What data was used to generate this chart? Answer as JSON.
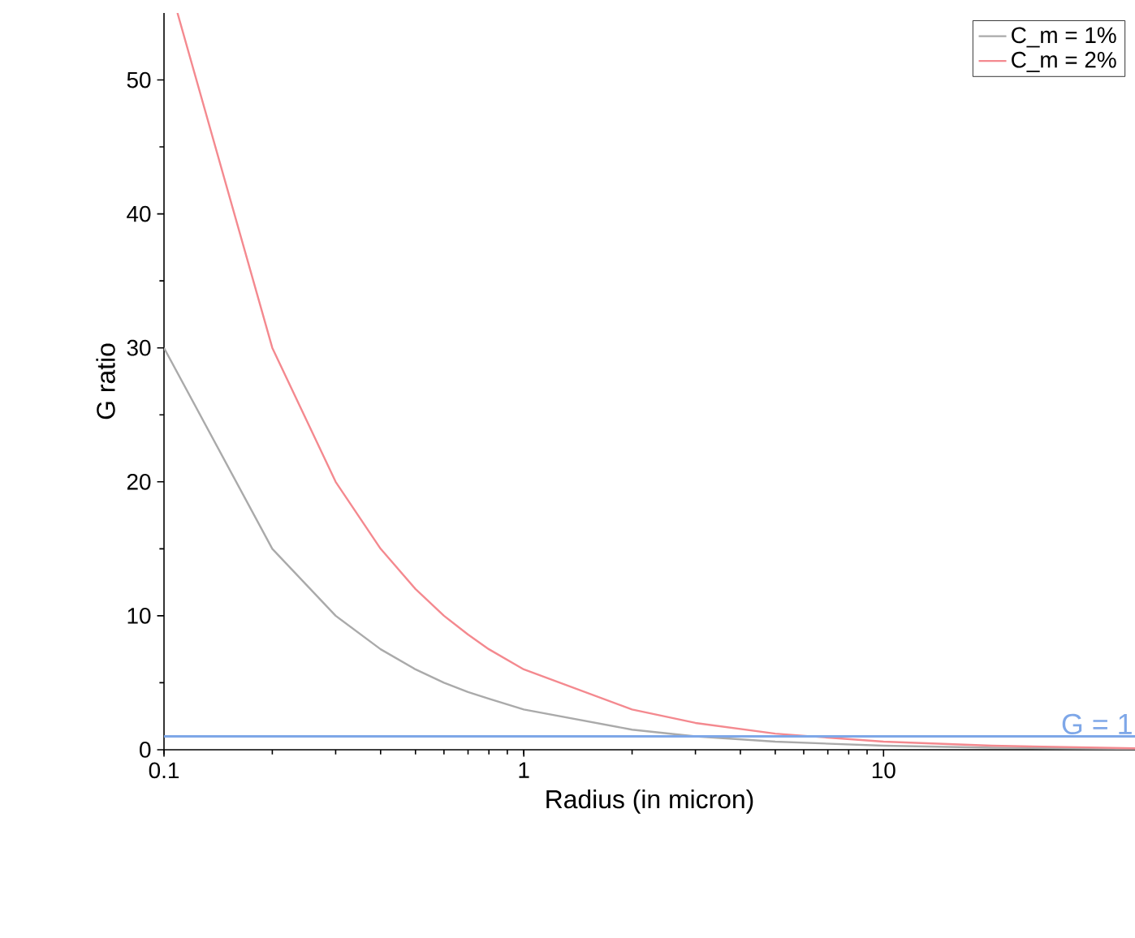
{
  "chart_data": {
    "type": "line",
    "xlabel": "Radius (in micron)",
    "ylabel": "G ratio",
    "log": "x",
    "xlim": [
      0.1,
      50
    ],
    "ylim": [
      0,
      55
    ],
    "xticks": [
      0.1,
      1,
      10
    ],
    "yticks": [
      0,
      10,
      20,
      30,
      40,
      50
    ],
    "legend": "top right",
    "grid": false,
    "series": [
      {
        "name": "C_m = 1%",
        "color": "#aaaaaa",
        "x": [
          0.1,
          0.2,
          0.3,
          0.4,
          0.5,
          0.6,
          0.7,
          0.8,
          1,
          2,
          3,
          5,
          10,
          20,
          50
        ],
        "values": [
          30,
          15,
          10,
          7.5,
          6,
          5,
          4.3,
          3.8,
          3,
          1.5,
          1,
          0.6,
          0.3,
          0.15,
          0.06
        ]
      },
      {
        "name": "C_m = 2%",
        "color": "#f4898f",
        "x": [
          0.109,
          0.2,
          0.3,
          0.4,
          0.5,
          0.6,
          0.7,
          0.8,
          1,
          2,
          3,
          5,
          10,
          20,
          50
        ],
        "values": [
          55,
          30,
          20,
          15,
          12,
          10,
          8.6,
          7.5,
          6,
          3,
          2,
          1.2,
          0.6,
          0.3,
          0.1
        ]
      }
    ],
    "ref_lines": [
      {
        "axis": "y",
        "value": 1,
        "label": "G = 1",
        "color": "#7ea7e8"
      }
    ]
  }
}
